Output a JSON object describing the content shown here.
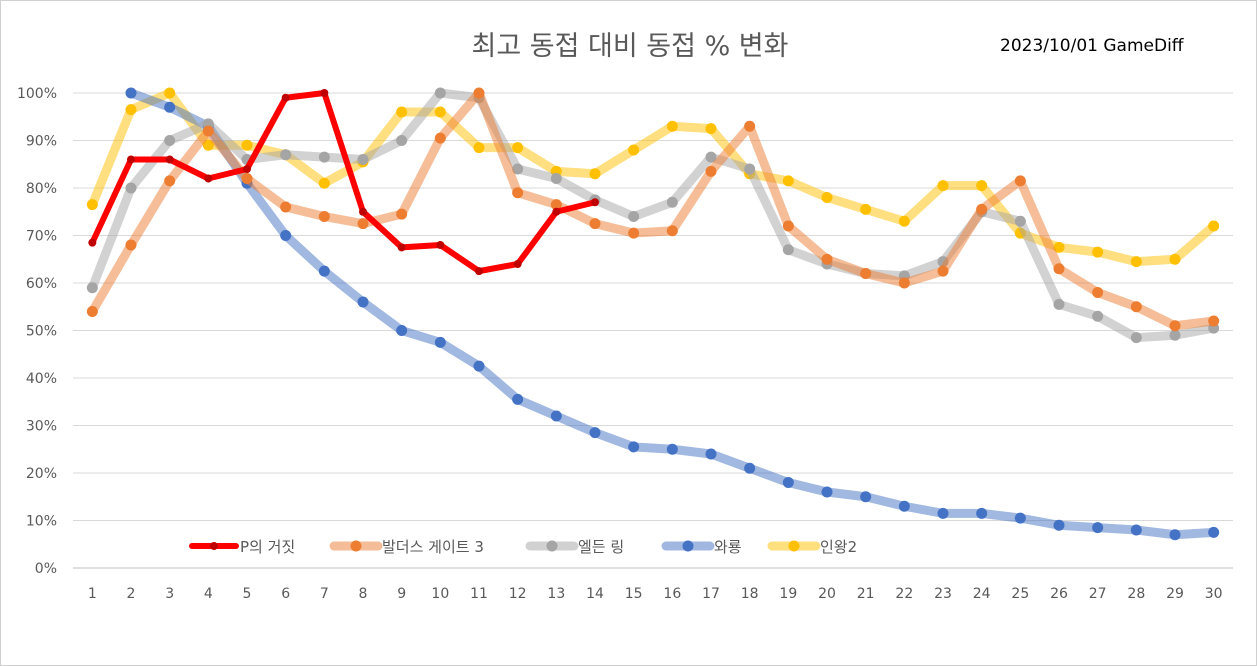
{
  "chart_data": {
    "type": "line",
    "title": "최고 동접 대비 동접 % 변화",
    "note": "2023/10/01 GameDiff",
    "xlabel": "",
    "ylabel": "",
    "ylim": [
      0,
      100
    ],
    "ytick_labels": [
      "0%",
      "10%",
      "20%",
      "30%",
      "40%",
      "50%",
      "60%",
      "70%",
      "80%",
      "90%",
      "100%"
    ],
    "categories": [
      1,
      2,
      3,
      4,
      5,
      6,
      7,
      8,
      9,
      10,
      11,
      12,
      13,
      14,
      15,
      16,
      17,
      18,
      19,
      20,
      21,
      22,
      23,
      24,
      25,
      26,
      27,
      28,
      29,
      30
    ],
    "gridlines": true,
    "legend_position": "bottom-left",
    "series": [
      {
        "name": "인왕2",
        "color": "#ffc000",
        "values": [
          76.5,
          96.5,
          100,
          89,
          89,
          87,
          81,
          85.5,
          96,
          96,
          88.5,
          88.5,
          83.5,
          83,
          88,
          93,
          92.5,
          83,
          81.5,
          78,
          75.5,
          73,
          80.5,
          80.5,
          70.5,
          67.5,
          66.5,
          64.5,
          65,
          72
        ]
      },
      {
        "name": "와룡",
        "color": "#4472c4",
        "values": [
          null,
          100,
          97,
          93,
          81,
          70,
          62.5,
          56,
          50,
          47.5,
          42.5,
          35.5,
          32,
          28.5,
          25.5,
          25,
          24,
          21,
          18,
          16,
          15,
          13,
          11.5,
          11.5,
          10.5,
          9,
          8.5,
          8,
          7,
          7.5
        ]
      },
      {
        "name": "엘든 링",
        "color": "#a5a5a5",
        "values": [
          59,
          80,
          90,
          93.5,
          86,
          87,
          86.5,
          86,
          90,
          100,
          99,
          84,
          82,
          77.5,
          74,
          77,
          86.5,
          84,
          67,
          64,
          62,
          61.5,
          64.5,
          75,
          73,
          55.5,
          53,
          48.5,
          49,
          50.5
        ]
      },
      {
        "name": "발더스 게이트 3",
        "color": "#ed7d31",
        "values": [
          54,
          68,
          81.5,
          92,
          82,
          76,
          74,
          72.5,
          74.5,
          90.5,
          100,
          79,
          76.5,
          72.5,
          70.5,
          71,
          83.5,
          93,
          72,
          65,
          62,
          60,
          62.5,
          75.5,
          81.5,
          63,
          58,
          55,
          51,
          52
        ]
      },
      {
        "name": "P의 거짓",
        "color": "#ff0000",
        "values": [
          68.5,
          86,
          86,
          82,
          84,
          99,
          100,
          75,
          67.5,
          68,
          62.5,
          64,
          75,
          77,
          null,
          null,
          null,
          null,
          null,
          null,
          null,
          null,
          null,
          null,
          null,
          null,
          null,
          null,
          null,
          null
        ]
      }
    ]
  }
}
